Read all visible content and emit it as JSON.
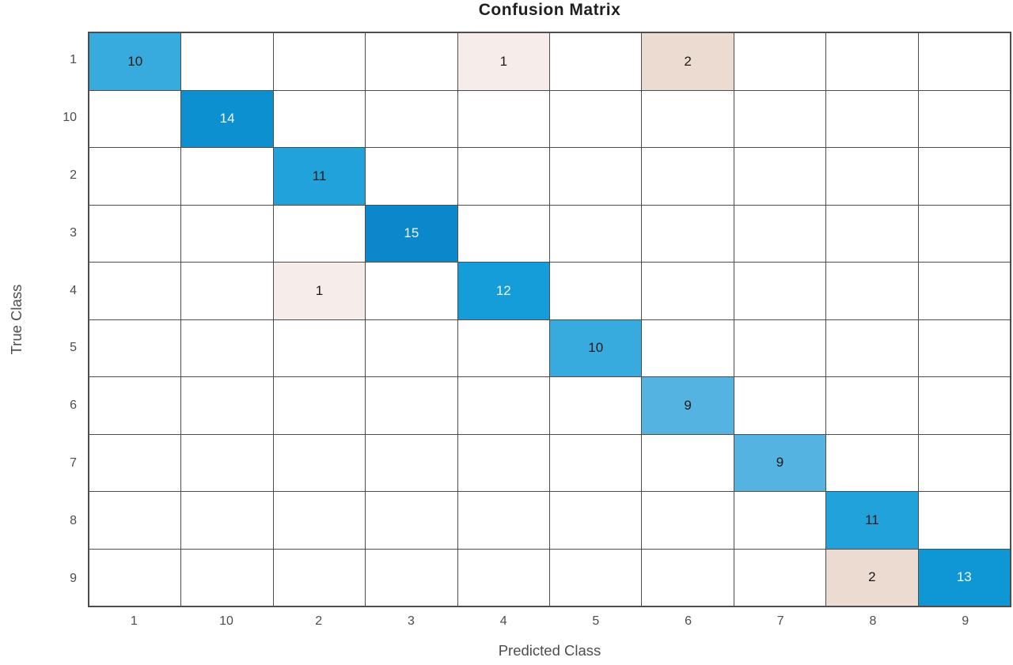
{
  "title": "Confusion Matrix",
  "chart_data": {
    "type": "heatmap",
    "subtype": "confusion-matrix",
    "title": "Confusion Matrix",
    "xlabel": "Predicted Class",
    "ylabel": "True Class",
    "classes": [
      "1",
      "10",
      "2",
      "3",
      "4",
      "5",
      "6",
      "7",
      "8",
      "9"
    ],
    "matrix": [
      [
        10,
        0,
        0,
        0,
        1,
        0,
        2,
        0,
        0,
        0
      ],
      [
        0,
        14,
        0,
        0,
        0,
        0,
        0,
        0,
        0,
        0
      ],
      [
        0,
        0,
        11,
        0,
        0,
        0,
        0,
        0,
        0,
        0
      ],
      [
        0,
        0,
        0,
        15,
        0,
        0,
        0,
        0,
        0,
        0
      ],
      [
        0,
        0,
        1,
        0,
        12,
        0,
        0,
        0,
        0,
        0
      ],
      [
        0,
        0,
        0,
        0,
        0,
        10,
        0,
        0,
        0,
        0
      ],
      [
        0,
        0,
        0,
        0,
        0,
        0,
        9,
        0,
        0,
        0
      ],
      [
        0,
        0,
        0,
        0,
        0,
        0,
        0,
        9,
        0,
        0
      ],
      [
        0,
        0,
        0,
        0,
        0,
        0,
        0,
        0,
        11,
        0
      ],
      [
        0,
        0,
        0,
        0,
        0,
        0,
        0,
        0,
        2,
        13
      ]
    ],
    "grid_on": true,
    "legend_position": "none",
    "colors": {
      "empty_cell": "#ffffff",
      "grid_line": "#4d4d4d",
      "title_text": "#1f1f1f",
      "tick_text": "#4d4d4d",
      "dark_cell_text": "#1a1a1a",
      "light_cell_text": "#f2f7fb",
      "diagonal_by_value": {
        "9": "#54b3e1",
        "10": "#38abde",
        "11": "#21a2da",
        "12": "#149dd8",
        "13": "#0f97d5",
        "14": "#0d90d0",
        "15": "#0a88cb"
      },
      "offdiagonal_by_value": {
        "1": "#f6ece9",
        "2": "#ecdbd1"
      }
    },
    "white_text_threshold": 12
  }
}
